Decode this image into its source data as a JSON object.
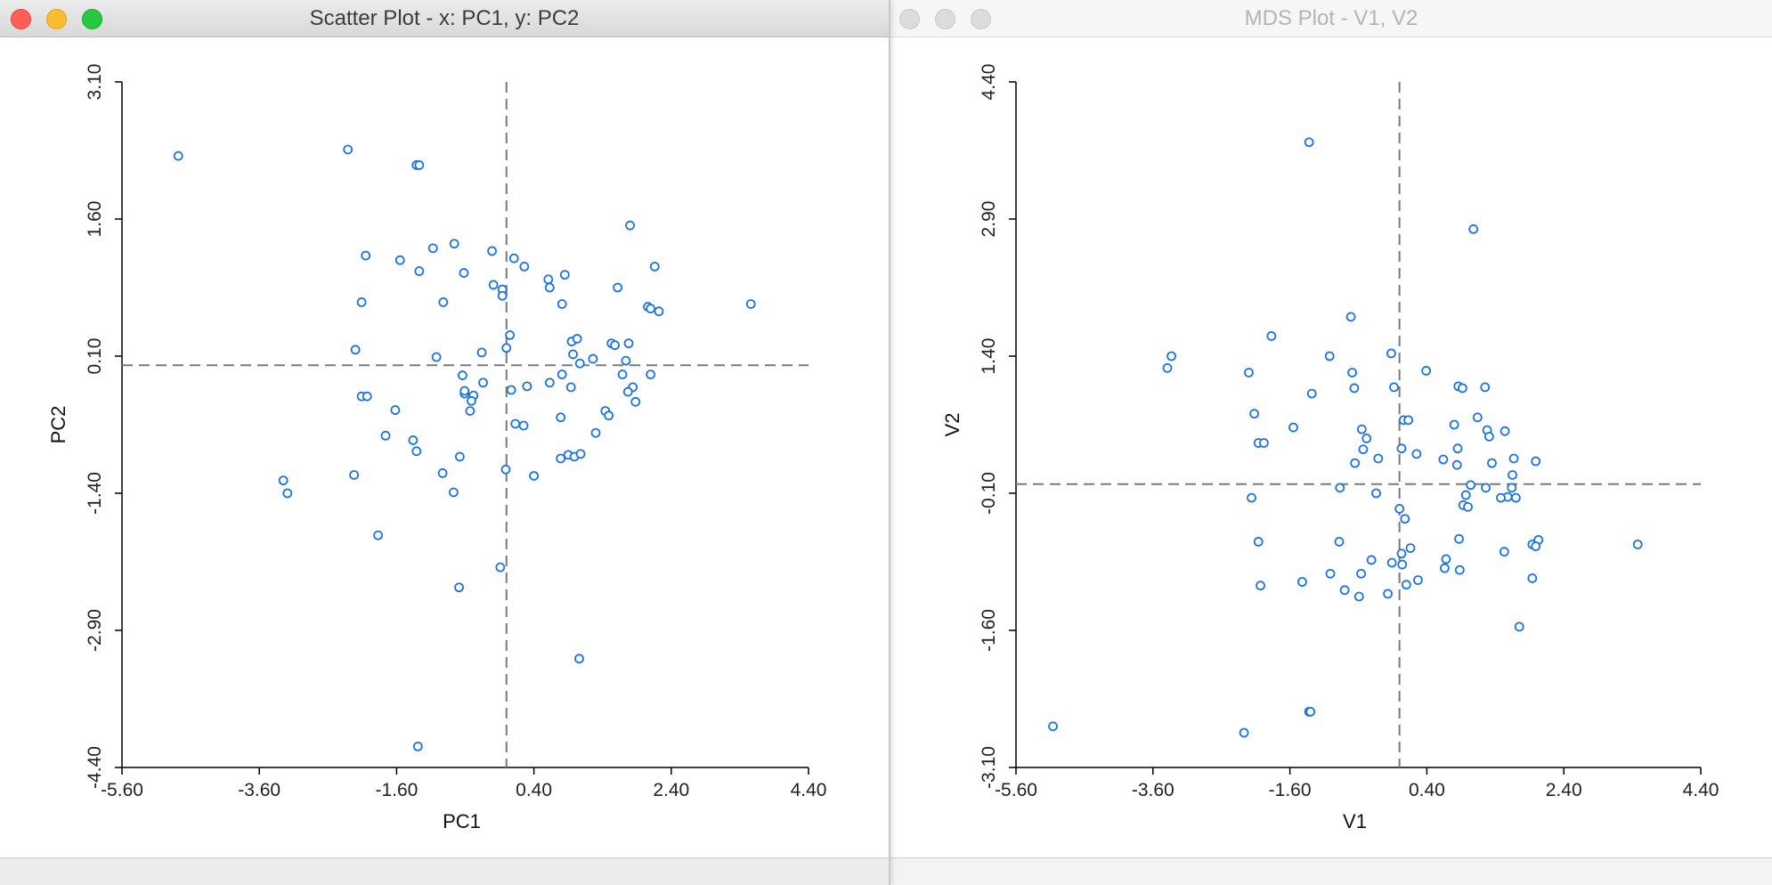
{
  "windows": [
    {
      "id": "left",
      "title": "Scatter Plot - x: PC1, y: PC2",
      "active": true,
      "chart_data": {
        "type": "scatter",
        "xlabel": "PC1",
        "ylabel": "PC2",
        "xlim": [
          -5.6,
          4.4
        ],
        "ylim": [
          -4.4,
          3.1
        ],
        "xticks": [
          "-5.60",
          "-3.60",
          "-1.60",
          "0.40",
          "2.40",
          "4.40"
        ],
        "yticks": [
          "-4.40",
          "-2.90",
          "-1.40",
          "0.10",
          "1.60",
          "3.10"
        ],
        "mean_x": 0.0,
        "mean_y": 0.0,
        "marker_color": "#1a73e8",
        "points": [
          [
            -4.78,
            2.29
          ],
          [
            -2.31,
            2.36
          ],
          [
            -1.31,
            2.19
          ],
          [
            -1.27,
            2.19
          ],
          [
            -2.05,
            1.2
          ],
          [
            -1.55,
            1.15
          ],
          [
            -1.07,
            1.28
          ],
          [
            -0.76,
            1.33
          ],
          [
            -1.27,
            1.03
          ],
          [
            -0.62,
            1.01
          ],
          [
            -0.21,
            1.25
          ],
          [
            -0.19,
            0.88
          ],
          [
            -0.06,
            0.83
          ],
          [
            0.11,
            1.17
          ],
          [
            0.26,
            1.08
          ],
          [
            0.61,
            0.94
          ],
          [
            0.85,
            0.99
          ],
          [
            1.8,
            1.53
          ],
          [
            2.16,
            1.08
          ],
          [
            1.62,
            0.85
          ],
          [
            -2.11,
            0.69
          ],
          [
            -0.92,
            0.69
          ],
          [
            -0.06,
            0.76
          ],
          [
            0.63,
            0.85
          ],
          [
            0.81,
            0.67
          ],
          [
            2.06,
            0.64
          ],
          [
            2.1,
            0.62
          ],
          [
            2.22,
            0.59
          ],
          [
            3.56,
            0.67
          ],
          [
            0.05,
            0.33
          ],
          [
            0.0,
            0.19
          ],
          [
            -2.2,
            0.17
          ],
          [
            -1.02,
            0.09
          ],
          [
            -0.36,
            0.14
          ],
          [
            0.95,
            0.26
          ],
          [
            1.03,
            0.29
          ],
          [
            1.53,
            0.24
          ],
          [
            1.58,
            0.22
          ],
          [
            1.78,
            0.24
          ],
          [
            0.97,
            0.12
          ],
          [
            1.26,
            0.07
          ],
          [
            1.07,
            0.02
          ],
          [
            1.74,
            0.05
          ],
          [
            -2.11,
            -0.34
          ],
          [
            -2.03,
            -0.34
          ],
          [
            -1.76,
            -0.77
          ],
          [
            -1.62,
            -0.49
          ],
          [
            -1.36,
            -0.82
          ],
          [
            -0.64,
            -0.11
          ],
          [
            -0.61,
            -0.31
          ],
          [
            -0.48,
            -0.33
          ],
          [
            -0.61,
            -0.28
          ],
          [
            -0.34,
            -0.19
          ],
          [
            -0.51,
            -0.39
          ],
          [
            -0.53,
            -0.5
          ],
          [
            0.07,
            -0.27
          ],
          [
            0.13,
            -0.64
          ],
          [
            0.25,
            -0.66
          ],
          [
            0.3,
            -0.23
          ],
          [
            0.63,
            -0.19
          ],
          [
            0.81,
            -0.1
          ],
          [
            0.94,
            -0.24
          ],
          [
            0.79,
            -0.57
          ],
          [
            0.9,
            -0.98
          ],
          [
            0.99,
            -1.0
          ],
          [
            1.08,
            -0.97
          ],
          [
            1.3,
            -0.74
          ],
          [
            1.44,
            -0.5
          ],
          [
            1.49,
            -0.55
          ],
          [
            1.69,
            -0.1
          ],
          [
            1.84,
            -0.24
          ],
          [
            2.1,
            -0.1
          ],
          [
            1.77,
            -0.29
          ],
          [
            1.88,
            -0.4
          ],
          [
            -3.25,
            -1.26
          ],
          [
            -3.19,
            -1.4
          ],
          [
            -2.22,
            -1.2
          ],
          [
            -1.87,
            -1.86
          ],
          [
            -1.31,
            -0.94
          ],
          [
            -0.93,
            -1.18
          ],
          [
            -0.77,
            -1.39
          ],
          [
            -0.68,
            -1.0
          ],
          [
            -0.69,
            -2.43
          ],
          [
            -0.09,
            -2.21
          ],
          [
            -0.01,
            -1.14
          ],
          [
            0.4,
            -1.21
          ],
          [
            0.79,
            -1.02
          ],
          [
            1.06,
            -3.21
          ],
          [
            -1.29,
            -4.17
          ]
        ]
      }
    },
    {
      "id": "right",
      "title": "MDS Plot - V1, V2",
      "active": false,
      "chart_data": {
        "type": "scatter",
        "xlabel": "V1",
        "ylabel": "V2",
        "xlim": [
          -5.6,
          4.4
        ],
        "ylim": [
          -3.1,
          4.4
        ],
        "xticks": [
          "-5.60",
          "-3.60",
          "-1.60",
          "0.40",
          "2.40",
          "4.40"
        ],
        "yticks": [
          "-3.10",
          "-1.60",
          "-0.10",
          "1.40",
          "2.90",
          "4.40"
        ],
        "mean_x": 0.0,
        "mean_y": 0.0,
        "marker_color": "#1a73e8",
        "points": [
          [
            -1.32,
            3.74
          ],
          [
            1.08,
            2.79
          ],
          [
            -0.71,
            1.83
          ],
          [
            -1.87,
            1.62
          ],
          [
            -3.33,
            1.4
          ],
          [
            -3.39,
            1.27
          ],
          [
            -0.12,
            1.43
          ],
          [
            -1.02,
            1.4
          ],
          [
            -2.2,
            1.22
          ],
          [
            -0.69,
            1.22
          ],
          [
            0.39,
            1.24
          ],
          [
            -0.66,
            1.05
          ],
          [
            -0.08,
            1.06
          ],
          [
            0.86,
            1.07
          ],
          [
            0.92,
            1.05
          ],
          [
            1.25,
            1.06
          ],
          [
            -1.28,
            0.99
          ],
          [
            -2.12,
            0.77
          ],
          [
            -1.55,
            0.62
          ],
          [
            0.06,
            0.7
          ],
          [
            0.13,
            0.7
          ],
          [
            0.8,
            0.65
          ],
          [
            1.14,
            0.73
          ],
          [
            1.28,
            0.59
          ],
          [
            1.54,
            0.58
          ],
          [
            -0.55,
            0.6
          ],
          [
            -0.48,
            0.5
          ],
          [
            -2.06,
            0.45
          ],
          [
            -1.98,
            0.45
          ],
          [
            -0.53,
            0.38
          ],
          [
            0.03,
            0.39
          ],
          [
            0.25,
            0.33
          ],
          [
            0.85,
            0.39
          ],
          [
            1.31,
            0.52
          ],
          [
            -0.31,
            0.28
          ],
          [
            -0.65,
            0.23
          ],
          [
            0.64,
            0.27
          ],
          [
            0.84,
            0.21
          ],
          [
            1.35,
            0.23
          ],
          [
            1.67,
            0.28
          ],
          [
            1.99,
            0.25
          ],
          [
            1.65,
            0.1
          ],
          [
            -0.87,
            -0.04
          ],
          [
            -0.34,
            -0.1
          ],
          [
            1.04,
            -0.01
          ],
          [
            1.26,
            -0.04
          ],
          [
            1.64,
            -0.04
          ],
          [
            0.97,
            -0.12
          ],
          [
            1.58,
            -0.14
          ],
          [
            1.48,
            -0.15
          ],
          [
            1.7,
            -0.15
          ],
          [
            -2.16,
            -0.15
          ],
          [
            0.93,
            -0.23
          ],
          [
            0.0,
            -0.27
          ],
          [
            1.0,
            -0.25
          ],
          [
            0.08,
            -0.38
          ],
          [
            -2.06,
            -0.63
          ],
          [
            -0.88,
            -0.63
          ],
          [
            -0.41,
            -0.83
          ],
          [
            0.16,
            -0.7
          ],
          [
            0.87,
            -0.6
          ],
          [
            1.53,
            -0.74
          ],
          [
            1.94,
            -0.66
          ],
          [
            2.03,
            -0.61
          ],
          [
            1.99,
            -0.68
          ],
          [
            3.48,
            -0.66
          ],
          [
            -1.01,
            -0.98
          ],
          [
            -0.56,
            -0.98
          ],
          [
            -1.42,
            -1.07
          ],
          [
            -2.03,
            -1.11
          ],
          [
            -0.8,
            -1.16
          ],
          [
            -0.59,
            -1.23
          ],
          [
            -0.11,
            -0.86
          ],
          [
            0.03,
            -0.76
          ],
          [
            0.04,
            -0.88
          ],
          [
            0.1,
            -1.1
          ],
          [
            0.68,
            -0.82
          ],
          [
            0.66,
            -0.92
          ],
          [
            0.88,
            -0.94
          ],
          [
            0.27,
            -1.05
          ],
          [
            -0.17,
            -1.2
          ],
          [
            1.75,
            -1.56
          ],
          [
            1.94,
            -1.03
          ],
          [
            -5.06,
            -2.65
          ],
          [
            -2.27,
            -2.72
          ],
          [
            -1.32,
            -2.49
          ],
          [
            -1.3,
            -2.49
          ]
        ]
      }
    }
  ]
}
